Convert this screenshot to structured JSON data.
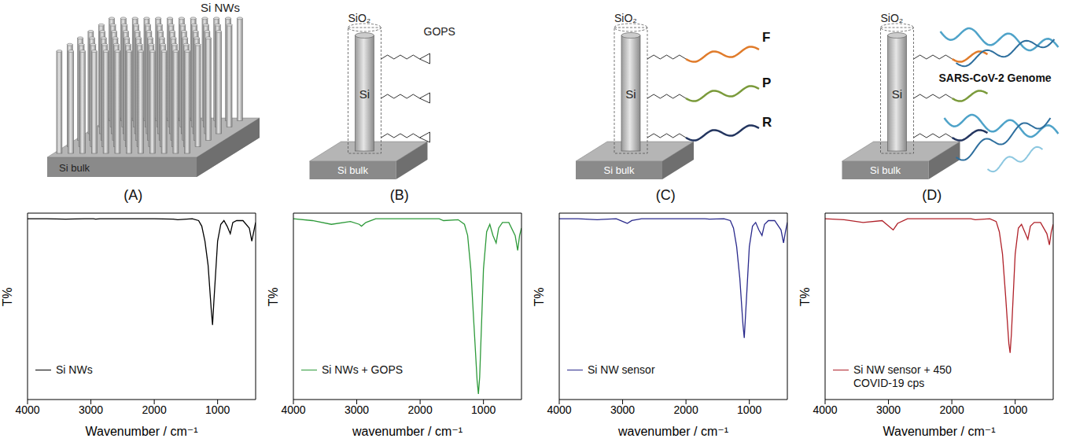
{
  "diagrams": [
    {
      "label": "(A)",
      "nanowires": "Si NWs",
      "substrate": "Si bulk"
    },
    {
      "label": "(B)",
      "shell": "SiO₂",
      "core": "Si",
      "substrate": "Si bulk",
      "linker": "GOPS"
    },
    {
      "label": "(C)",
      "shell": "SiO₂",
      "core": "Si",
      "substrate": "Si bulk",
      "probes": [
        "F",
        "P",
        "R"
      ]
    },
    {
      "label": "(D)",
      "shell": "SiO₂",
      "core": "Si",
      "substrate": "Si bulk",
      "target": "SARS-CoV-2 Genome"
    }
  ],
  "chart_data": [
    {
      "type": "line",
      "x_label": "Wavenumber / cm⁻¹",
      "y_label": "T%",
      "xlim": [
        4000,
        400
      ],
      "xticks": [
        4000,
        3000,
        2000,
        1000
      ],
      "ylim": [
        0,
        100
      ],
      "tick_labels": "x",
      "legend": "lower left",
      "x": [
        4000,
        3700,
        3400,
        3100,
        2960,
        2925,
        2855,
        2700,
        2000,
        1700,
        1630,
        1400,
        1300,
        1250,
        1200,
        1150,
        1100,
        1080,
        1060,
        1000,
        950,
        900,
        850,
        800,
        760,
        700,
        600,
        500,
        460,
        430,
        400
      ],
      "series": [
        {
          "name": "Si NWs",
          "color": "#000000",
          "values": [
            97,
            97,
            96.8,
            97,
            97,
            96.8,
            97,
            97,
            97,
            96.8,
            96.5,
            97,
            96,
            93,
            85,
            72,
            48,
            40,
            52,
            85,
            94,
            96,
            93,
            89,
            95,
            96,
            96,
            92,
            85,
            90,
            95
          ]
        }
      ]
    },
    {
      "type": "line",
      "x_label": "wavenumber / cm⁻¹",
      "y_label": "T%",
      "xlim": [
        4000,
        400
      ],
      "xticks": [
        4000,
        3000,
        2000,
        1000
      ],
      "ylim": [
        0,
        100
      ],
      "tick_labels": "x",
      "legend": "lower left",
      "x": [
        4000,
        3700,
        3400,
        3100,
        2960,
        2925,
        2855,
        2700,
        2000,
        1700,
        1630,
        1400,
        1300,
        1250,
        1200,
        1150,
        1100,
        1080,
        1060,
        1000,
        950,
        900,
        850,
        800,
        760,
        700,
        600,
        500,
        460,
        430,
        400
      ],
      "series": [
        {
          "name": "Si NWs + GOPS",
          "color": "#2e9a3a",
          "values": [
            97,
            96,
            94,
            95.5,
            94,
            93,
            95,
            97,
            97,
            97,
            96,
            96.5,
            94,
            88,
            70,
            40,
            10,
            3,
            12,
            70,
            90,
            94,
            88,
            84,
            92,
            95,
            95,
            88,
            80,
            88,
            92
          ]
        }
      ]
    },
    {
      "type": "line",
      "x_label": "wavenumber / cm⁻¹",
      "y_label": "T%",
      "xlim": [
        4000,
        400
      ],
      "xticks": [
        4000,
        3000,
        2000,
        1000
      ],
      "ylim": [
        0,
        100
      ],
      "tick_labels": "x",
      "legend": "lower left",
      "x": [
        4000,
        3700,
        3400,
        3100,
        2960,
        2925,
        2855,
        2700,
        2000,
        1700,
        1630,
        1400,
        1300,
        1250,
        1200,
        1150,
        1100,
        1080,
        1060,
        1000,
        950,
        900,
        850,
        800,
        760,
        700,
        600,
        500,
        460,
        430,
        400
      ],
      "series": [
        {
          "name": "Si NW sensor",
          "color": "#2a2a8c",
          "values": [
            97,
            97,
            96.5,
            97,
            95,
            94.5,
            96,
            97,
            97,
            97,
            96.8,
            97,
            96,
            92,
            82,
            65,
            40,
            33,
            45,
            82,
            93,
            95,
            91,
            88,
            94,
            96,
            96,
            91,
            84,
            90,
            95
          ]
        }
      ]
    },
    {
      "type": "line",
      "x_label": "Wavenumber / cm⁻¹",
      "y_label": "T%",
      "xlim": [
        4000,
        400
      ],
      "xticks": [
        4000,
        3000,
        2000,
        1000
      ],
      "ylim": [
        0,
        100
      ],
      "tick_labels": "x",
      "legend": "lower left",
      "x": [
        4000,
        3700,
        3400,
        3100,
        2960,
        2925,
        2855,
        2700,
        2000,
        1700,
        1630,
        1400,
        1300,
        1250,
        1200,
        1150,
        1100,
        1080,
        1060,
        1000,
        950,
        900,
        850,
        800,
        760,
        700,
        600,
        500,
        460,
        430,
        400
      ],
      "series": [
        {
          "name": "Si NW sensor + 450 COVID-19 cps",
          "color": "#b0222a",
          "values": [
            97,
            96.5,
            95,
            96,
            92,
            91,
            94.5,
            97,
            97,
            97,
            96.5,
            97,
            95.5,
            90,
            78,
            55,
            30,
            25,
            35,
            78,
            92,
            94,
            90,
            86,
            93,
            95,
            95,
            89,
            83,
            90,
            94
          ]
        }
      ]
    }
  ]
}
